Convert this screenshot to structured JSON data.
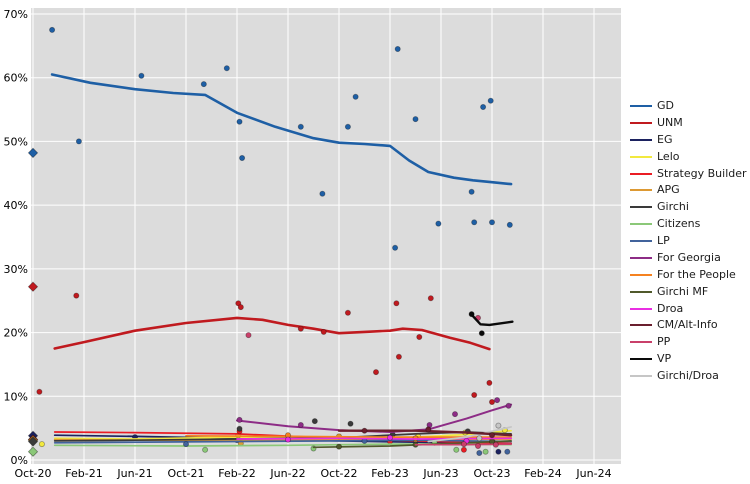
{
  "chart_data": {
    "type": "scatter",
    "title": "",
    "xlabel": "",
    "ylabel": "",
    "plot_bg": "#dcdcdc",
    "grid_color": "#ffffff",
    "legend_position": "right",
    "x_axis": {
      "tick_labels": [
        "Oct-20",
        "Feb-21",
        "Jun-21",
        "Oct-21",
        "Feb-22",
        "Jun-22",
        "Oct-22",
        "Feb-23",
        "Jun-23",
        "Oct-23",
        "Feb-24",
        "Jun-24"
      ],
      "tick_months": [
        0,
        4,
        8,
        12,
        16,
        20,
        24,
        28,
        32,
        36,
        40,
        44
      ]
    },
    "y_axis": {
      "tick_labels": [
        "0%",
        "10%",
        "20%",
        "30%",
        "40%",
        "50%",
        "60%",
        "70%"
      ],
      "min": 0,
      "max": 70
    },
    "series": [
      {
        "name": "GD",
        "color": "#1e5fa5",
        "width": 2.6,
        "line": [
          [
            1.5,
            60.5
          ],
          [
            4.5,
            59.2
          ],
          [
            8,
            58.2
          ],
          [
            11,
            57.6
          ],
          [
            13.5,
            57.3
          ],
          [
            16,
            54.5
          ],
          [
            19,
            52.3
          ],
          [
            22,
            50.5
          ],
          [
            24,
            49.8
          ],
          [
            26,
            49.6
          ],
          [
            28,
            49.3
          ],
          [
            29.5,
            47.0
          ],
          [
            31,
            45.2
          ],
          [
            33,
            44.3
          ],
          [
            34.5,
            43.9
          ],
          [
            36,
            43.6
          ],
          [
            37.5,
            43.3
          ]
        ],
        "points": [
          [
            1.5,
            67.5
          ],
          [
            3.6,
            50.0
          ],
          [
            8.5,
            60.3
          ],
          [
            13.4,
            59.0
          ],
          [
            15.2,
            61.5
          ],
          [
            16.2,
            53.1
          ],
          [
            16.4,
            47.4
          ],
          [
            21.0,
            52.3
          ],
          [
            22.7,
            41.8
          ],
          [
            24.7,
            52.3
          ],
          [
            25.3,
            57.0
          ],
          [
            28.4,
            33.3
          ],
          [
            28.6,
            64.5
          ],
          [
            30.0,
            53.5
          ],
          [
            31.8,
            37.1
          ],
          [
            34.4,
            42.1
          ],
          [
            34.6,
            37.3
          ],
          [
            35.3,
            55.4
          ],
          [
            35.9,
            56.4
          ],
          [
            36.0,
            37.3
          ],
          [
            37.4,
            36.9
          ]
        ],
        "diamond": [
          0,
          48.2
        ]
      },
      {
        "name": "UNM",
        "color": "#c01a1f",
        "width": 2.6,
        "line": [
          [
            1.7,
            17.5
          ],
          [
            4,
            18.5
          ],
          [
            8,
            20.3
          ],
          [
            12,
            21.5
          ],
          [
            16,
            22.3
          ],
          [
            18,
            22.0
          ],
          [
            20,
            21.2
          ],
          [
            22,
            20.6
          ],
          [
            24,
            19.9
          ],
          [
            26,
            20.1
          ],
          [
            28,
            20.3
          ],
          [
            29,
            20.6
          ],
          [
            30.5,
            20.4
          ],
          [
            32.7,
            19.2
          ],
          [
            34.3,
            18.4
          ],
          [
            35.8,
            17.4
          ]
        ],
        "points": [
          [
            0.5,
            10.7
          ],
          [
            3.4,
            25.8
          ],
          [
            16.1,
            24.6
          ],
          [
            16.3,
            24.0
          ],
          [
            21.0,
            20.6
          ],
          [
            22.8,
            20.1
          ],
          [
            24.7,
            23.1
          ],
          [
            26.9,
            13.8
          ],
          [
            28.5,
            24.6
          ],
          [
            28.7,
            16.2
          ],
          [
            30.3,
            19.3
          ],
          [
            31.2,
            25.4
          ],
          [
            34.6,
            10.2
          ],
          [
            35.8,
            12.1
          ],
          [
            36.0,
            9.1
          ]
        ],
        "diamond": [
          0,
          27.2
        ]
      },
      {
        "name": "EG",
        "color": "#1c2260",
        "width": 1.7,
        "line": [
          [
            1.7,
            3.9
          ],
          [
            8,
            3.7
          ],
          [
            16,
            3.4
          ],
          [
            24,
            3.0
          ],
          [
            30,
            2.8
          ],
          [
            37.5,
            2.6
          ]
        ],
        "points": [
          [
            8,
            3.6
          ],
          [
            16,
            3.1
          ],
          [
            36.5,
            1.3
          ]
        ],
        "diamond": [
          0,
          3.8
        ]
      },
      {
        "name": "Lelo",
        "color": "#f2e93f",
        "width": 1.7,
        "line": [
          [
            1.7,
            3.4
          ],
          [
            8,
            3.3
          ],
          [
            16,
            3.6
          ],
          [
            24,
            3.4
          ],
          [
            30,
            3.6
          ],
          [
            34,
            4.0
          ],
          [
            37.5,
            4.6
          ]
        ],
        "points": [
          [
            0.7,
            2.5
          ],
          [
            16.1,
            3.9
          ],
          [
            30.2,
            3.7
          ],
          [
            33.9,
            4.3
          ],
          [
            37.0,
            4.7
          ]
        ],
        "diamond": [
          0,
          3.2
        ]
      },
      {
        "name": "Strategy Builder",
        "color": "#ea1c24",
        "width": 1.7,
        "line": [
          [
            1.7,
            4.4
          ],
          [
            8,
            4.3
          ],
          [
            16,
            4.1
          ],
          [
            24,
            3.4
          ],
          [
            30,
            3.0
          ],
          [
            37.5,
            2.6
          ]
        ],
        "points": [
          [
            16.2,
            4.5
          ],
          [
            28,
            2.9
          ],
          [
            33.8,
            1.6
          ],
          [
            36.1,
            2.8
          ]
        ],
        "diamond": [
          0,
          3.2
        ]
      },
      {
        "name": "APG",
        "color": "#dd9933",
        "width": 1.7,
        "line": [
          [
            1.7,
            3.2
          ],
          [
            8,
            3.1
          ],
          [
            16,
            3.1
          ],
          [
            24,
            3.2
          ],
          [
            30,
            3.2
          ],
          [
            37.5,
            3.3
          ]
        ],
        "points": [
          [
            16.3,
            2.6
          ],
          [
            24,
            3.7
          ],
          [
            30,
            3.2
          ],
          [
            36,
            3.4
          ]
        ],
        "diamond": [
          0,
          3.1
        ]
      },
      {
        "name": "Girchi",
        "color": "#3a3a3a",
        "width": 1.7,
        "line": [
          [
            1.7,
            3.0
          ],
          [
            8,
            3.1
          ],
          [
            16,
            3.3
          ],
          [
            24,
            3.5
          ],
          [
            30,
            4.1
          ],
          [
            34,
            4.4
          ],
          [
            37.5,
            4.1
          ]
        ],
        "points": [
          [
            16.2,
            4.9
          ],
          [
            22.1,
            6.1
          ],
          [
            24.9,
            5.7
          ],
          [
            28.2,
            4.0
          ],
          [
            34.1,
            4.5
          ]
        ],
        "diamond": [
          0,
          2.9
        ]
      },
      {
        "name": "Citizens",
        "color": "#8bc878",
        "width": 1.7,
        "line": [
          [
            1.7,
            2.3
          ],
          [
            12,
            2.2
          ],
          [
            20,
            2.3
          ],
          [
            28,
            2.5
          ],
          [
            34,
            2.5
          ],
          [
            37.5,
            2.4
          ]
        ],
        "points": [
          [
            13.5,
            1.6
          ],
          [
            22.0,
            1.8
          ],
          [
            31.5,
            2.7
          ],
          [
            33.2,
            1.6
          ],
          [
            35.5,
            1.3
          ]
        ],
        "diamond": [
          0,
          1.3
        ]
      },
      {
        "name": "LP",
        "color": "#41639c",
        "width": 1.7,
        "line": [
          [
            1.7,
            2.7
          ],
          [
            16,
            2.9
          ],
          [
            24,
            3.0
          ],
          [
            30,
            3.1
          ],
          [
            37.5,
            2.9
          ]
        ],
        "points": [
          [
            12,
            2.5
          ],
          [
            26,
            3.0
          ],
          [
            35.0,
            1.1
          ],
          [
            37.2,
            1.3
          ]
        ]
      },
      {
        "name": "For Georgia",
        "color": "#8d2c86",
        "width": 2.0,
        "line": [
          [
            16,
            6.2
          ],
          [
            20,
            5.3
          ],
          [
            24,
            4.7
          ],
          [
            28,
            4.4
          ],
          [
            31,
            4.8
          ],
          [
            34,
            6.5
          ],
          [
            36,
            7.8
          ],
          [
            37.5,
            8.7
          ]
        ],
        "points": [
          [
            16.2,
            6.3
          ],
          [
            21,
            5.5
          ],
          [
            31.1,
            5.5
          ],
          [
            33.1,
            7.2
          ],
          [
            36.4,
            9.4
          ],
          [
            37.3,
            8.5
          ]
        ]
      },
      {
        "name": "For the People",
        "color": "#f58220",
        "width": 1.7,
        "line": [
          [
            12,
            3.8
          ],
          [
            20,
            3.7
          ],
          [
            28,
            3.6
          ],
          [
            37.5,
            3.6
          ]
        ],
        "points": [
          [
            20,
            3.9
          ],
          [
            30,
            3.4
          ]
        ]
      },
      {
        "name": "Girchi MF",
        "color": "#50592b",
        "width": 1.7,
        "line": [
          [
            22,
            2.0
          ],
          [
            28,
            2.2
          ],
          [
            34,
            2.7
          ],
          [
            37.5,
            3.0
          ]
        ],
        "points": [
          [
            24,
            2.1
          ],
          [
            30,
            2.4
          ],
          [
            36,
            2.9
          ]
        ]
      },
      {
        "name": "Droa",
        "color": "#e92fe2",
        "width": 1.7,
        "line": [
          [
            16,
            3.3
          ],
          [
            24,
            3.4
          ],
          [
            30,
            3.3
          ],
          [
            37.5,
            3.4
          ]
        ],
        "points": [
          [
            20,
            3.2
          ],
          [
            28,
            3.5
          ],
          [
            34,
            3.0
          ]
        ]
      },
      {
        "name": "CM/Alt-Info",
        "color": "#6a1f2e",
        "width": 2.4,
        "line": [
          [
            24,
            4.6
          ],
          [
            30,
            4.6
          ],
          [
            34,
            4.3
          ],
          [
            37.5,
            3.9
          ]
        ],
        "points": [
          [
            26,
            4.6
          ],
          [
            31,
            4.8
          ],
          [
            36,
            3.9
          ]
        ]
      },
      {
        "name": "PP",
        "color": "#c9406a",
        "width": 1.7,
        "line": [
          [
            30,
            2.4
          ],
          [
            34,
            2.4
          ],
          [
            37.5,
            2.5
          ]
        ],
        "points": [
          [
            16.9,
            19.6
          ],
          [
            34.9,
            22.3
          ],
          [
            33.8,
            2.5
          ],
          [
            34.9,
            2.2
          ],
          [
            36.3,
            2.4
          ]
        ]
      },
      {
        "name": "VP",
        "color": "#0a0a0a",
        "width": 2.4,
        "line": [
          [
            34.4,
            22.8
          ],
          [
            35.1,
            21.3
          ],
          [
            35.8,
            21.2
          ],
          [
            37.6,
            21.7
          ]
        ],
        "points": [
          [
            34.4,
            22.9
          ],
          [
            35.2,
            19.9
          ]
        ]
      },
      {
        "name": "Girchi/Droa",
        "color": "#c6c6c6",
        "width": 1.7,
        "line": [
          [
            31,
            2.9
          ],
          [
            34,
            3.6
          ],
          [
            37.5,
            5.2
          ]
        ],
        "points": [
          [
            35.0,
            3.4
          ],
          [
            36.5,
            5.4
          ]
        ]
      }
    ]
  }
}
